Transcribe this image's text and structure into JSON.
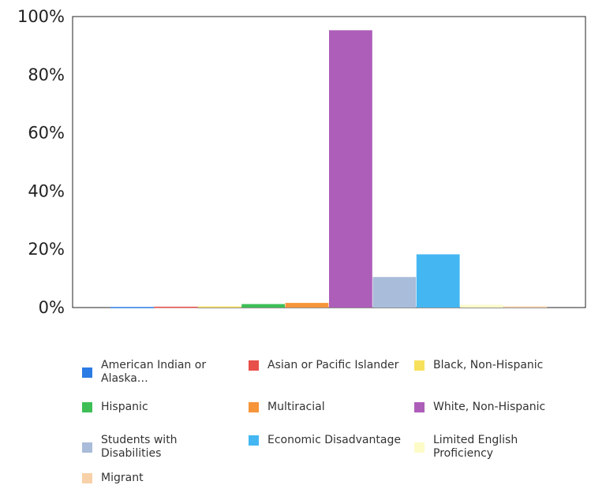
{
  "chart_data": {
    "type": "bar",
    "y_axis": {
      "range": [
        0,
        100
      ],
      "ticks": [
        0,
        20,
        40,
        60,
        80,
        100
      ],
      "tick_labels": [
        "0%",
        "20%",
        "40%",
        "60%",
        "80%",
        "100%"
      ]
    },
    "grid": false,
    "legend_placement": "bottom",
    "series": [
      {
        "name": "American Indian or Alaska…",
        "value": 0.2,
        "color": "#2b7be4"
      },
      {
        "name": "Asian or Pacific Islander",
        "value": 0.3,
        "color": "#e8504a"
      },
      {
        "name": "Black, Non-Hispanic",
        "value": 0.4,
        "color": "#f7e15c"
      },
      {
        "name": "Hispanic",
        "value": 1.2,
        "color": "#3dbf56"
      },
      {
        "name": "Multiracial",
        "value": 1.6,
        "color": "#f6953a"
      },
      {
        "name": "White, Non-Hispanic",
        "value": 95.3,
        "color": "#ad5eb9"
      },
      {
        "name": "Students with Disabilities",
        "value": 10.5,
        "color": "#a9bcd9"
      },
      {
        "name": "Economic Disadvantage",
        "value": 18.3,
        "color": "#44b7f2"
      },
      {
        "name": "Limited English Proficiency",
        "value": 0.9,
        "color": "#fdfbc8"
      },
      {
        "name": "Migrant",
        "value": 0.4,
        "color": "#f8d1a8"
      }
    ]
  }
}
